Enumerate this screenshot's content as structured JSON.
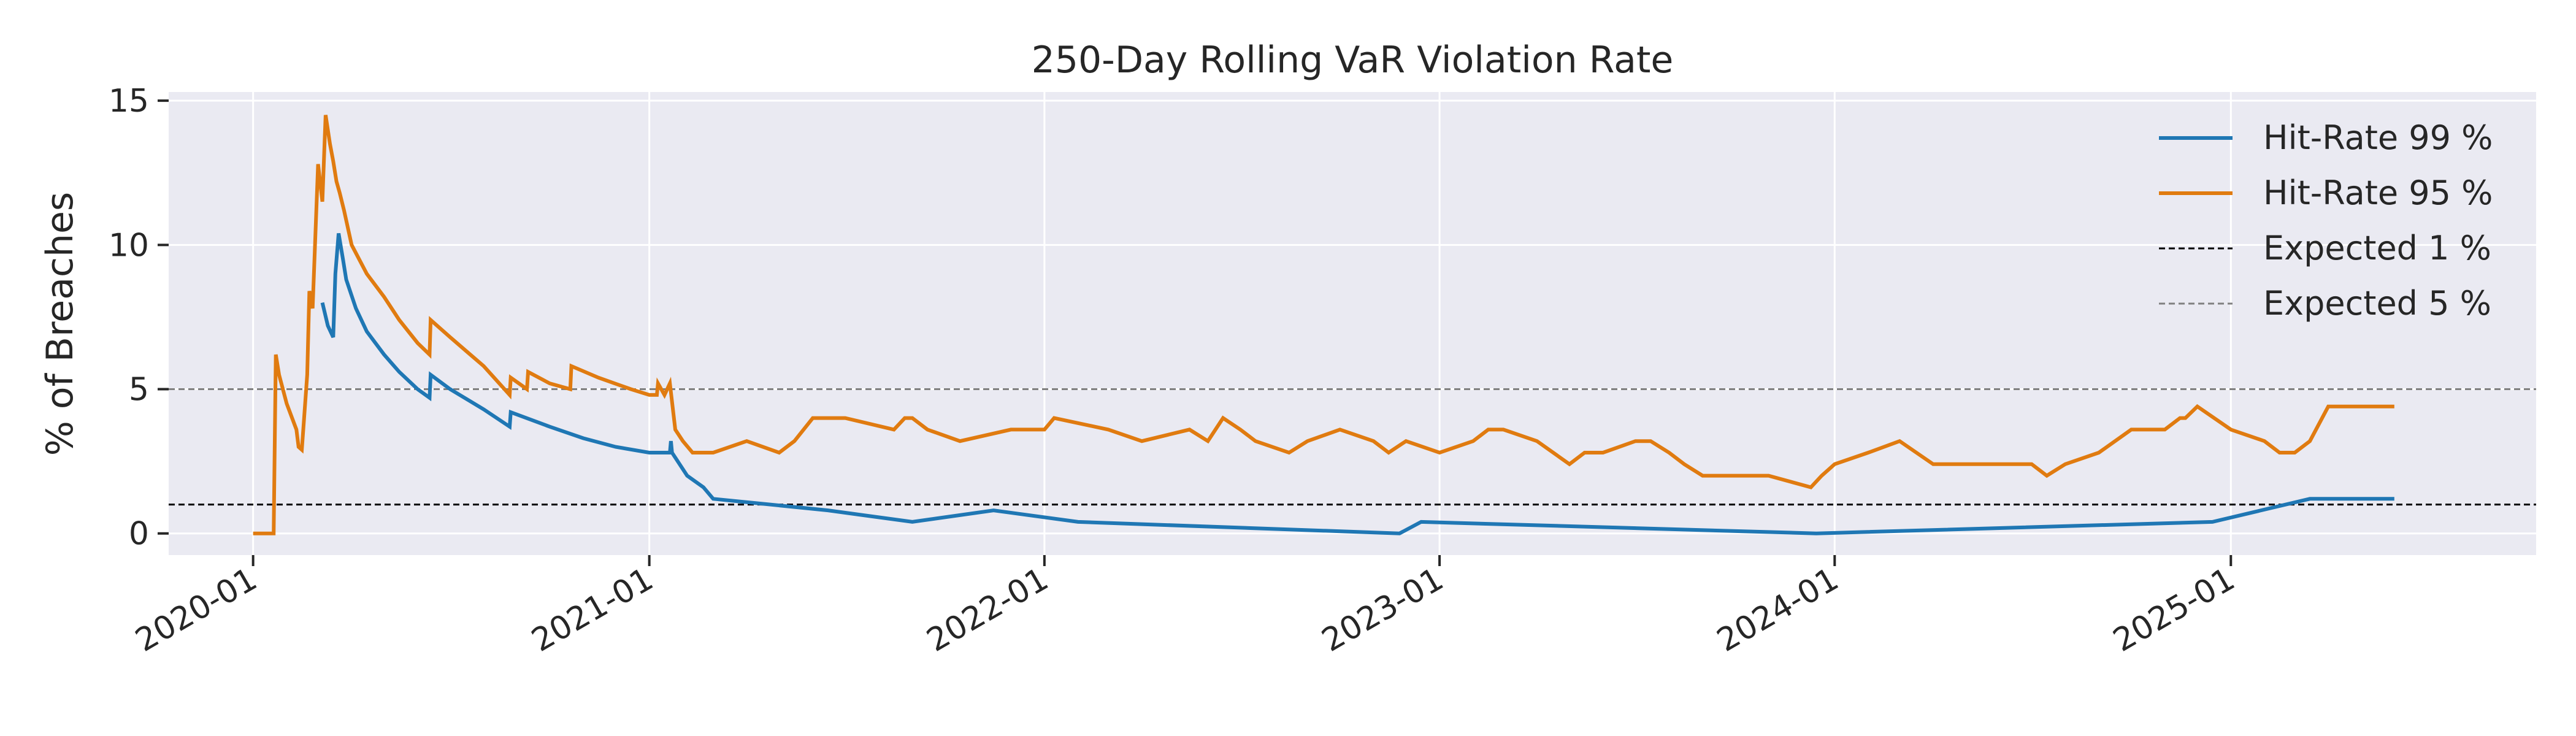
{
  "chart_data": {
    "type": "line",
    "title": "250-Day Rolling VaR Violation Rate",
    "xlabel": "",
    "ylabel": "% of Breaches",
    "x_ticks": [
      "2020-01",
      "2021-01",
      "2022-01",
      "2023-01",
      "2024-01",
      "2025-01"
    ],
    "y_ticks": [
      0,
      5,
      10,
      15
    ],
    "xlim": [
      "2019-10-15",
      "2025-10-10"
    ],
    "ylim": [
      -0.75,
      15.3
    ],
    "grid": true,
    "legend_position": "top-right",
    "colors": {
      "background": "#eaeaf2",
      "grid": "#ffffff",
      "hit99": "#1f77b4",
      "hit95": "#e07b10",
      "expected1": "#000000",
      "expected5": "#808080"
    },
    "reference_lines": [
      {
        "name": "Expected 1 %",
        "y": 1,
        "color": "#000000"
      },
      {
        "name": "Expected 5 %",
        "y": 5,
        "color": "#808080"
      }
    ],
    "series": [
      {
        "name": "Hit-Rate 99 %",
        "color": "#1f77b4",
        "x": [
          "2020-03-05",
          "2020-03-10",
          "2020-03-15",
          "2020-03-17",
          "2020-03-20",
          "2020-03-24",
          "2020-03-27",
          "2020-04-05",
          "2020-04-15",
          "2020-05-01",
          "2020-05-15",
          "2020-06-01",
          "2020-06-12",
          "2020-06-13",
          "2020-07-01",
          "2020-08-01",
          "2020-08-25",
          "2020-08-26",
          "2020-10-01",
          "2020-11-01",
          "2020-12-01",
          "2021-01-01",
          "2021-01-20",
          "2021-01-21",
          "2021-01-22",
          "2021-02-05",
          "2021-02-20",
          "2021-03-01",
          "2021-06-15",
          "2021-09-01",
          "2021-11-15",
          "2022-02-01",
          "2022-11-25",
          "2022-12-15",
          "2023-12-15",
          "2024-12-15",
          "2025-03-15",
          "2025-06-01"
        ],
        "y": [
          8.0,
          7.2,
          6.8,
          9.0,
          10.4,
          9.5,
          8.8,
          7.8,
          7.0,
          6.2,
          5.6,
          5.0,
          4.7,
          5.5,
          5.0,
          4.3,
          3.7,
          4.2,
          3.7,
          3.3,
          3.0,
          2.8,
          2.8,
          3.2,
          2.8,
          2.0,
          1.6,
          1.2,
          0.8,
          0.4,
          0.8,
          0.4,
          0.0,
          0.4,
          0.0,
          0.4,
          1.2,
          1.2
        ]
      },
      {
        "name": "Hit-Rate 95 %",
        "color": "#e07b10",
        "x": [
          "2020-01-01",
          "2020-01-20",
          "2020-01-22",
          "2020-01-25",
          "2020-02-01",
          "2020-02-10",
          "2020-02-12",
          "2020-02-15",
          "2020-02-20",
          "2020-02-22",
          "2020-02-25",
          "2020-03-01",
          "2020-03-05",
          "2020-03-08",
          "2020-03-12",
          "2020-03-15",
          "2020-03-18",
          "2020-03-21",
          "2020-03-25",
          "2020-04-01",
          "2020-04-15",
          "2020-05-01",
          "2020-05-15",
          "2020-06-01",
          "2020-06-12",
          "2020-06-13",
          "2020-07-01",
          "2020-08-01",
          "2020-08-25",
          "2020-08-26",
          "2020-09-10",
          "2020-09-11",
          "2020-10-01",
          "2020-10-20",
          "2020-10-21",
          "2020-11-15",
          "2020-12-15",
          "2021-01-01",
          "2021-01-08",
          "2021-01-09",
          "2021-01-15",
          "2021-01-20",
          "2021-01-25",
          "2021-02-01",
          "2021-02-10",
          "2021-03-01",
          "2021-04-01",
          "2021-05-01",
          "2021-05-15",
          "2021-06-01",
          "2021-07-01",
          "2021-08-15",
          "2021-08-25",
          "2021-09-01",
          "2021-09-15",
          "2021-10-15",
          "2021-12-01",
          "2022-01-01",
          "2022-01-10",
          "2022-03-01",
          "2022-04-01",
          "2022-05-15",
          "2022-06-01",
          "2022-06-15",
          "2022-07-01",
          "2022-07-15",
          "2022-08-15",
          "2022-09-01",
          "2022-10-01",
          "2022-11-01",
          "2022-11-15",
          "2022-12-01",
          "2023-01-01",
          "2023-02-01",
          "2023-02-15",
          "2023-03-01",
          "2023-04-01",
          "2023-05-01",
          "2023-05-15",
          "2023-06-01",
          "2023-07-01",
          "2023-07-15",
          "2023-08-01",
          "2023-08-15",
          "2023-09-01",
          "2023-10-01",
          "2023-11-01",
          "2023-12-10",
          "2023-12-20",
          "2024-01-01",
          "2024-02-01",
          "2024-03-01",
          "2024-04-01",
          "2024-05-01",
          "2024-06-01",
          "2024-07-01",
          "2024-07-15",
          "2024-08-01",
          "2024-09-01",
          "2024-10-01",
          "2024-11-01",
          "2024-11-15",
          "2024-11-20",
          "2024-12-01",
          "2025-01-01",
          "2025-02-01",
          "2025-02-15",
          "2025-03-01",
          "2025-03-15",
          "2025-04-01",
          "2025-06-01"
        ],
        "y": [
          0,
          0,
          6.2,
          5.5,
          4.5,
          3.6,
          3.0,
          2.9,
          5.5,
          8.4,
          7.8,
          12.8,
          11.5,
          14.5,
          13.5,
          12.9,
          12.2,
          11.8,
          11.2,
          10.0,
          9.0,
          8.2,
          7.4,
          6.6,
          6.2,
          7.4,
          6.8,
          5.8,
          4.8,
          5.4,
          5.0,
          5.6,
          5.2,
          5.0,
          5.8,
          5.4,
          5.0,
          4.8,
          4.8,
          5.2,
          4.8,
          5.2,
          3.6,
          3.2,
          2.8,
          2.8,
          3.2,
          2.8,
          3.2,
          4.0,
          4.0,
          3.6,
          4.0,
          4.0,
          3.6,
          3.2,
          3.6,
          3.6,
          4.0,
          3.6,
          3.2,
          3.6,
          3.2,
          4.0,
          3.6,
          3.2,
          2.8,
          3.2,
          3.6,
          3.2,
          2.8,
          3.2,
          2.8,
          3.2,
          3.6,
          3.6,
          3.2,
          2.4,
          2.8,
          2.8,
          3.2,
          3.2,
          2.8,
          2.4,
          2.0,
          2.0,
          2.0,
          1.6,
          2.0,
          2.4,
          2.8,
          3.2,
          2.4,
          2.4,
          2.4,
          2.4,
          2.0,
          2.4,
          2.8,
          3.6,
          3.6,
          4.0,
          4.0,
          4.4,
          3.6,
          3.2,
          2.8,
          2.8,
          3.2,
          4.4,
          4.4
        ]
      }
    ]
  }
}
